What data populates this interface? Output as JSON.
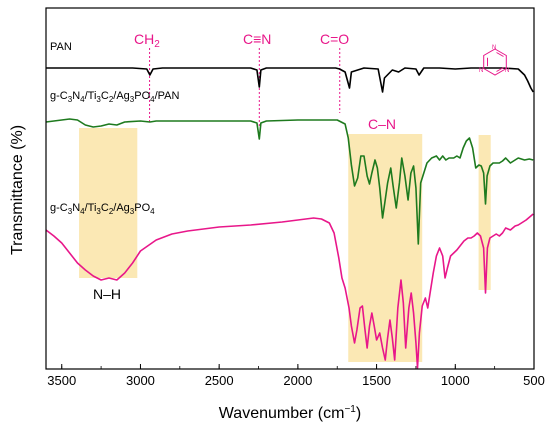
{
  "chart_data": {
    "type": "line",
    "title": "",
    "xlabel": "Wavenumber (cm⁻¹)",
    "ylabel": "Transmittance (%)",
    "xlim": [
      3600,
      500
    ],
    "x_reversed": true,
    "y_ticks_shown": false,
    "x_ticks": [
      3500,
      3000,
      2500,
      2000,
      1500,
      1000,
      500
    ],
    "x_tick_labels": [
      "3500",
      "3000",
      "2500",
      "2000",
      "1500",
      "1000",
      "500"
    ],
    "grid": false,
    "legend": "none",
    "series": [
      {
        "name": "PAN",
        "color": "#000000",
        "points": [
          [
            3600,
            60
          ],
          [
            3400,
            60
          ],
          [
            3200,
            60
          ],
          [
            3050,
            60
          ],
          [
            2960,
            61
          ],
          [
            2940,
            67
          ],
          [
            2920,
            61
          ],
          [
            2860,
            60
          ],
          [
            2500,
            60
          ],
          [
            2300,
            60
          ],
          [
            2260,
            62
          ],
          [
            2245,
            79
          ],
          [
            2235,
            62
          ],
          [
            2200,
            60
          ],
          [
            1900,
            60
          ],
          [
            1760,
            60
          ],
          [
            1735,
            61
          ],
          [
            1700,
            64
          ],
          [
            1672,
            80
          ],
          [
            1660,
            64
          ],
          [
            1620,
            62
          ],
          [
            1580,
            60
          ],
          [
            1490,
            61
          ],
          [
            1462,
            84
          ],
          [
            1450,
            70
          ],
          [
            1400,
            62
          ],
          [
            1360,
            64
          ],
          [
            1320,
            60
          ],
          [
            1250,
            61
          ],
          [
            1230,
            67
          ],
          [
            1200,
            60
          ],
          [
            1100,
            60
          ],
          [
            1000,
            61
          ],
          [
            900,
            60
          ],
          [
            800,
            60
          ],
          [
            700,
            60
          ],
          [
            600,
            61
          ],
          [
            560,
            67
          ],
          [
            540,
            73
          ],
          [
            520,
            80
          ],
          [
            505,
            84
          ]
        ]
      },
      {
        "name": "g-C₃N₄/Ti₃C₂/Ag₃PO₄/PAN",
        "color": "#1e7a1e",
        "points": [
          [
            3600,
            114
          ],
          [
            3500,
            112
          ],
          [
            3450,
            111
          ],
          [
            3400,
            112
          ],
          [
            3350,
            117
          ],
          [
            3300,
            119
          ],
          [
            3250,
            118
          ],
          [
            3200,
            116
          ],
          [
            3150,
            117
          ],
          [
            3100,
            114
          ],
          [
            3000,
            113
          ],
          [
            2940,
            114
          ],
          [
            2900,
            113
          ],
          [
            2500,
            113
          ],
          [
            2300,
            113
          ],
          [
            2260,
            115
          ],
          [
            2245,
            131
          ],
          [
            2235,
            115
          ],
          [
            2200,
            113
          ],
          [
            2000,
            112
          ],
          [
            1800,
            112
          ],
          [
            1750,
            112
          ],
          [
            1700,
            116
          ],
          [
            1680,
            130
          ],
          [
            1660,
            157
          ],
          [
            1640,
            178
          ],
          [
            1620,
            170
          ],
          [
            1600,
            148
          ],
          [
            1580,
            148
          ],
          [
            1560,
            168
          ],
          [
            1545,
            176
          ],
          [
            1530,
            165
          ],
          [
            1510,
            152
          ],
          [
            1495,
            160
          ],
          [
            1480,
            180
          ],
          [
            1462,
            210
          ],
          [
            1448,
            195
          ],
          [
            1430,
            175
          ],
          [
            1410,
            160
          ],
          [
            1395,
            178
          ],
          [
            1375,
            200
          ],
          [
            1355,
            175
          ],
          [
            1340,
            150
          ],
          [
            1320,
            168
          ],
          [
            1300,
            192
          ],
          [
            1282,
            165
          ],
          [
            1265,
            158
          ],
          [
            1250,
            180
          ],
          [
            1235,
            236
          ],
          [
            1220,
            175
          ],
          [
            1200,
            165
          ],
          [
            1180,
            155
          ],
          [
            1150,
            150
          ],
          [
            1120,
            148
          ],
          [
            1100,
            152
          ],
          [
            1080,
            148
          ],
          [
            1060,
            152
          ],
          [
            1040,
            150
          ],
          [
            1010,
            150
          ],
          [
            990,
            148
          ],
          [
            970,
            150
          ],
          [
            950,
            140
          ],
          [
            930,
            133
          ],
          [
            910,
            130
          ],
          [
            890,
            140
          ],
          [
            870,
            160
          ],
          [
            850,
            157
          ],
          [
            835,
            158
          ],
          [
            820,
            165
          ],
          [
            808,
            196
          ],
          [
            798,
            168
          ],
          [
            780,
            158
          ],
          [
            760,
            155
          ],
          [
            720,
            155
          ],
          [
            700,
            153
          ],
          [
            680,
            150
          ],
          [
            650,
            155
          ],
          [
            620,
            152
          ],
          [
            600,
            150
          ],
          [
            560,
            152
          ],
          [
            530,
            151
          ],
          [
            505,
            152
          ]
        ]
      },
      {
        "name": "g-C₃N₄/Ti₃C₂/Ag₃PO₄",
        "color": "#e8178a",
        "points": [
          [
            3600,
            222
          ],
          [
            3550,
            228
          ],
          [
            3500,
            235
          ],
          [
            3450,
            245
          ],
          [
            3400,
            255
          ],
          [
            3350,
            262
          ],
          [
            3300,
            268
          ],
          [
            3250,
            272
          ],
          [
            3200,
            270
          ],
          [
            3150,
            272
          ],
          [
            3100,
            265
          ],
          [
            3050,
            255
          ],
          [
            3000,
            243
          ],
          [
            2900,
            232
          ],
          [
            2800,
            226
          ],
          [
            2700,
            223
          ],
          [
            2500,
            219
          ],
          [
            2300,
            217
          ],
          [
            2100,
            214
          ],
          [
            1950,
            211
          ],
          [
            1900,
            210
          ],
          [
            1850,
            211
          ],
          [
            1800,
            215
          ],
          [
            1770,
            225
          ],
          [
            1740,
            250
          ],
          [
            1720,
            270
          ],
          [
            1700,
            280
          ],
          [
            1690,
            288
          ],
          [
            1675,
            300
          ],
          [
            1660,
            318
          ],
          [
            1640,
            335
          ],
          [
            1625,
            322
          ],
          [
            1605,
            300
          ],
          [
            1590,
            298
          ],
          [
            1575,
            320
          ],
          [
            1560,
            340
          ],
          [
            1545,
            318
          ],
          [
            1530,
            305
          ],
          [
            1515,
            318
          ],
          [
            1500,
            332
          ],
          [
            1480,
            325
          ],
          [
            1462,
            340
          ],
          [
            1445,
            352
          ],
          [
            1430,
            330
          ],
          [
            1415,
            312
          ],
          [
            1400,
            330
          ],
          [
            1385,
            352
          ],
          [
            1365,
            300
          ],
          [
            1345,
            272
          ],
          [
            1330,
            295
          ],
          [
            1315,
            340
          ],
          [
            1295,
            300
          ],
          [
            1280,
            285
          ],
          [
            1265,
            305
          ],
          [
            1250,
            335
          ],
          [
            1240,
            360
          ],
          [
            1228,
            325
          ],
          [
            1210,
            298
          ],
          [
            1190,
            290
          ],
          [
            1175,
            300
          ],
          [
            1160,
            285
          ],
          [
            1140,
            265
          ],
          [
            1120,
            248
          ],
          [
            1100,
            240
          ],
          [
            1080,
            248
          ],
          [
            1065,
            270
          ],
          [
            1050,
            260
          ],
          [
            1030,
            248
          ],
          [
            1010,
            245
          ],
          [
            990,
            242
          ],
          [
            970,
            238
          ],
          [
            945,
            233
          ],
          [
            920,
            230
          ],
          [
            900,
            230
          ],
          [
            880,
            228
          ],
          [
            860,
            225
          ],
          [
            840,
            228
          ],
          [
            820,
            240
          ],
          [
            808,
            285
          ],
          [
            796,
            240
          ],
          [
            780,
            230
          ],
          [
            760,
            228
          ],
          [
            740,
            226
          ],
          [
            720,
            228
          ],
          [
            700,
            225
          ],
          [
            680,
            220
          ],
          [
            650,
            222
          ],
          [
            620,
            218
          ],
          [
            600,
            217
          ],
          [
            580,
            215
          ],
          [
            550,
            212
          ],
          [
            505,
            206
          ]
        ]
      }
    ],
    "shaded_regions": [
      {
        "label": "N–H",
        "x_from": 3390,
        "x_to": 3020
      },
      {
        "label": "C–N",
        "x_from": 1680,
        "x_to": 1210
      },
      {
        "label": "triazine",
        "x_from": 852,
        "x_to": 775
      }
    ],
    "peak_markers": [
      {
        "label": "CH₂",
        "x": 2942
      },
      {
        "label": "C≡N",
        "x": 2245
      },
      {
        "label": "C=O",
        "x": 1734
      }
    ],
    "annotation_color": "#e8178a",
    "shade_color": "#fbe8b4"
  },
  "labels": {
    "xlabel": "Wavenumber (cm⁻¹)",
    "ylabel": "Transmittance (%)",
    "pan": "PAN",
    "composite_pan": "g-C₃N₄/Ti₃C₂/Ag₃PO₄/PAN",
    "composite": "g-C₃N₄/Ti₃C₂/Ag₃PO₄",
    "nh": "N–H",
    "cn": "C–N",
    "ch2": "CH₂",
    "cnt": "C≡N",
    "co": "C=O"
  }
}
